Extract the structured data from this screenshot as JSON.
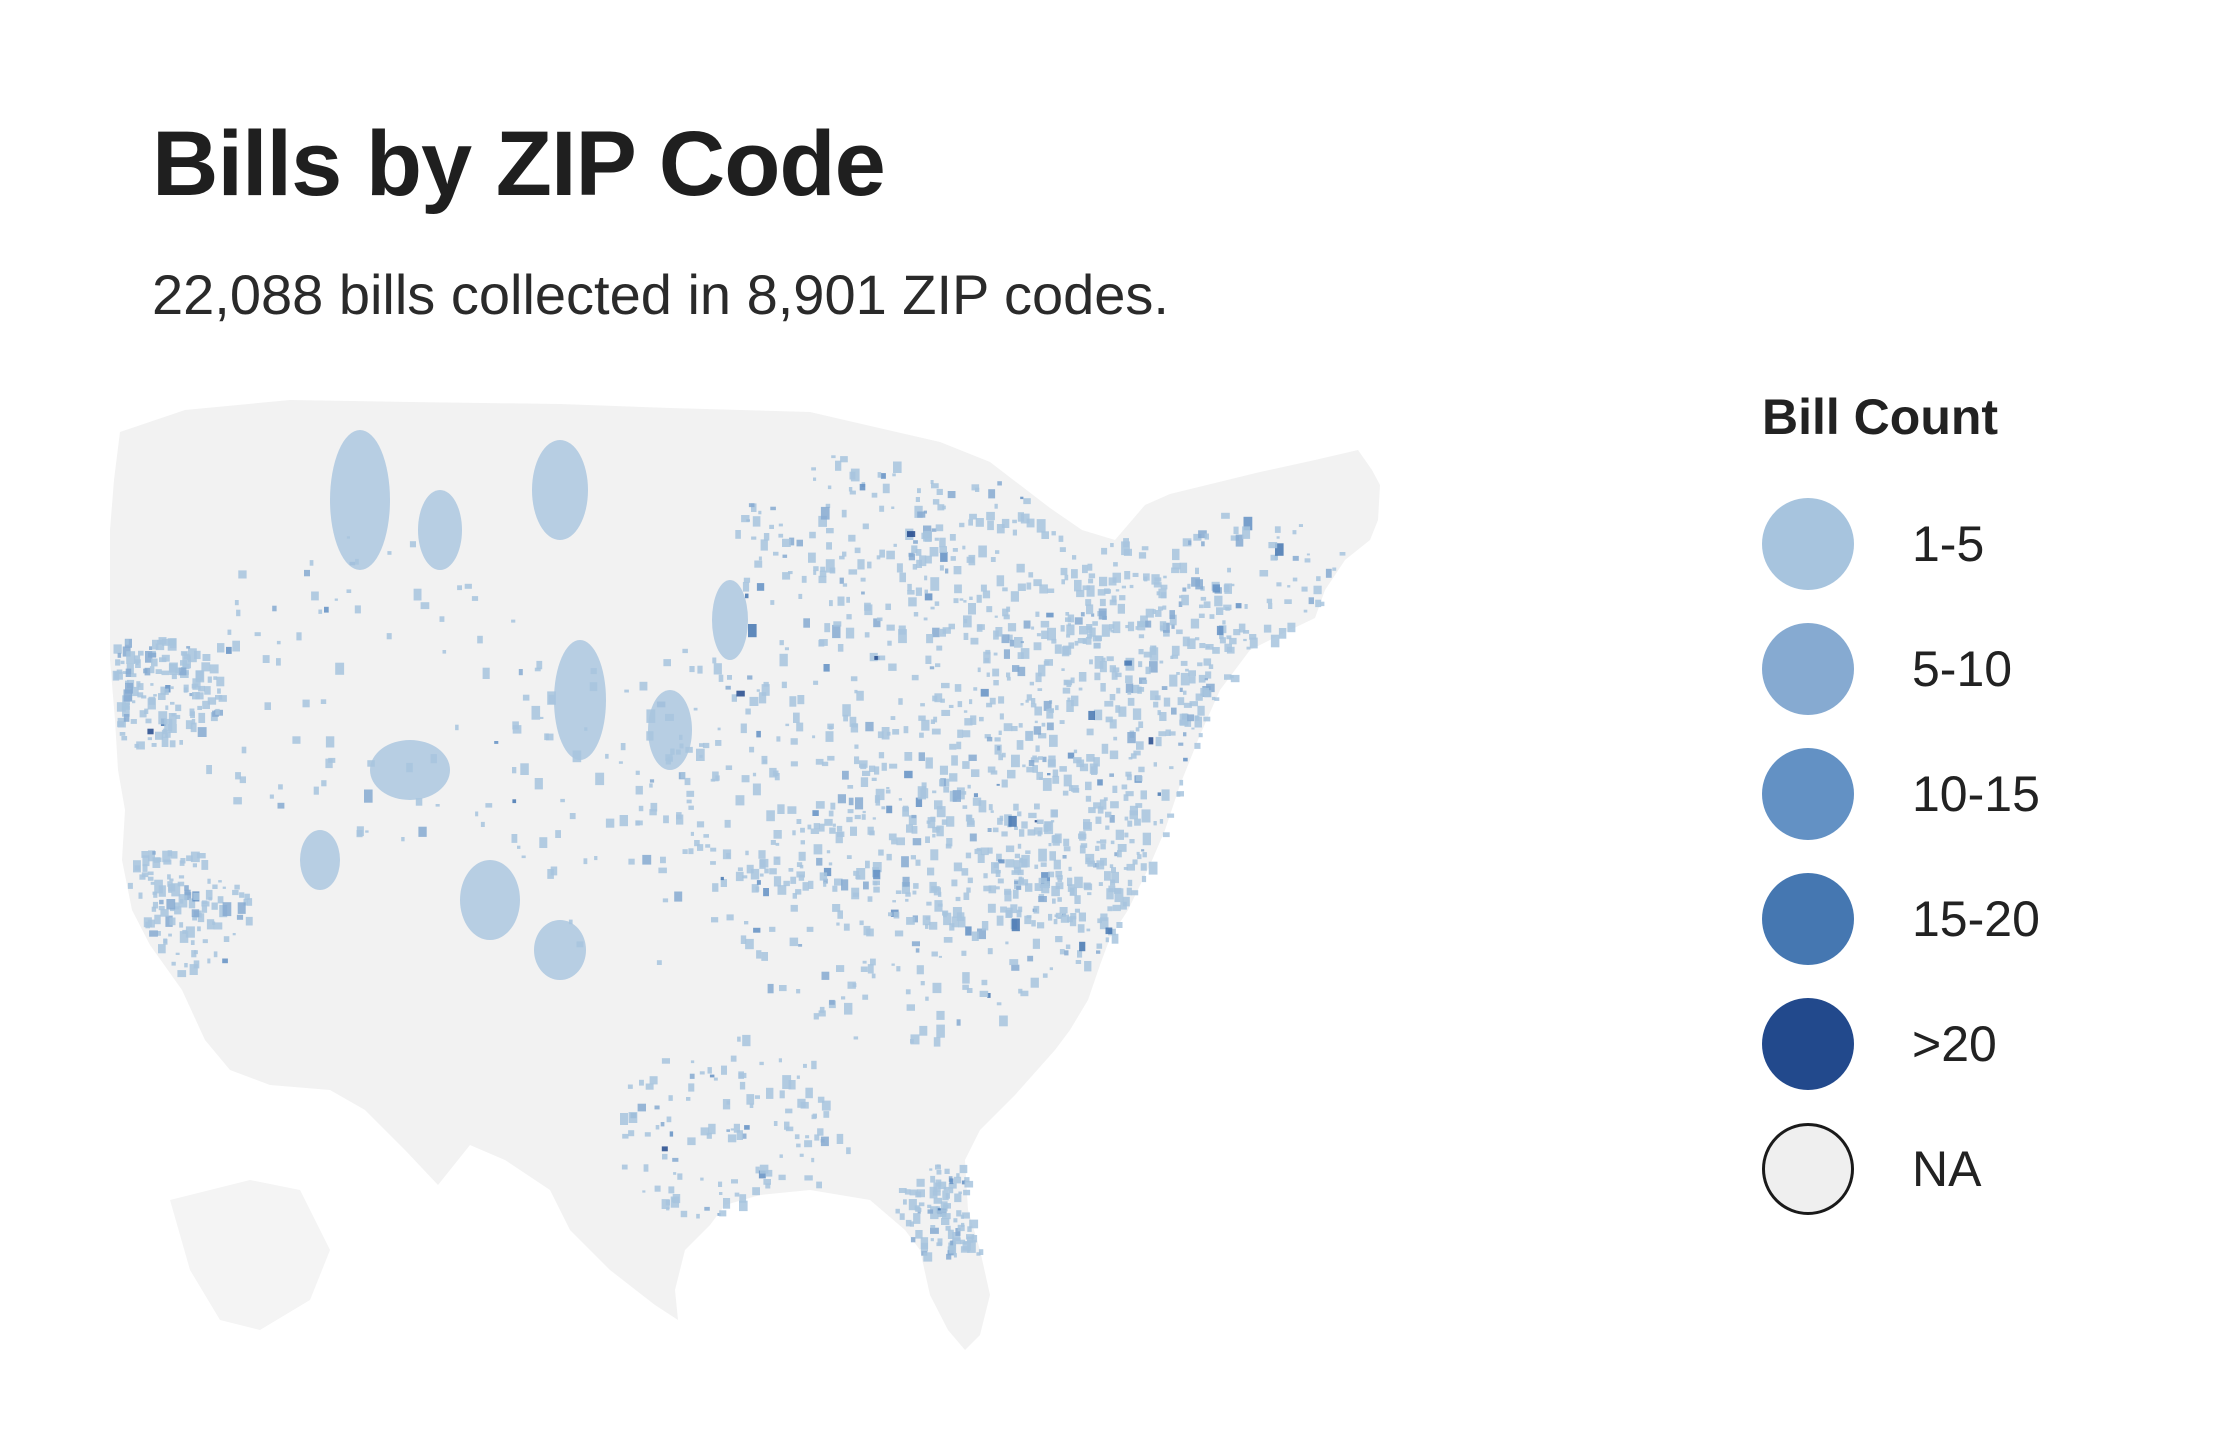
{
  "map": {
    "title": "Bills by ZIP Code",
    "subtitle": "22,088 bills collected in 8,901 ZIP codes.",
    "region": "contiguous-united-states",
    "base_color": "#f2f2f2",
    "legend": {
      "title": "Bill Count",
      "items": [
        {
          "label": "1-5",
          "color": "#a7c4de"
        },
        {
          "label": "5-10",
          "color": "#86aad1"
        },
        {
          "label": "10-15",
          "color": "#6391c4"
        },
        {
          "label": "15-20",
          "color": "#4577b1"
        },
        {
          "label": ">20",
          "color": "#22498c"
        },
        {
          "label": "NA",
          "color": "#efefef"
        }
      ]
    }
  }
}
